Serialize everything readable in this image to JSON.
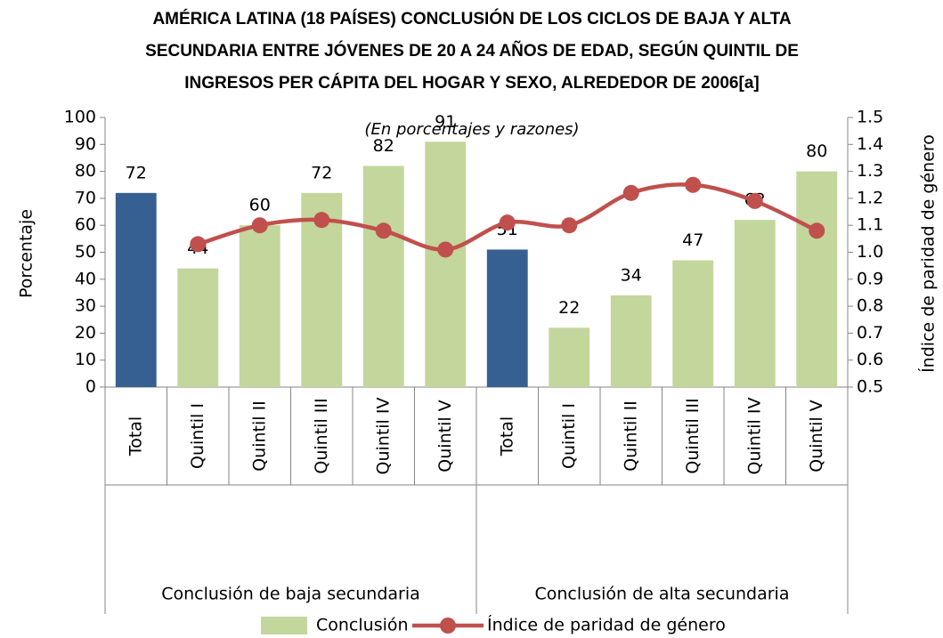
{
  "chart_data": {
    "type": "combo",
    "title": [
      "AMÉRICA LATINA (18 PAÍSES) CONCLUSIÓN DE LOS CICLOS DE BAJA Y ALTA",
      "SECUNDARIA ENTRE JÓVENES DE 20 A 24 AÑOS DE EDAD, SEGÚN QUINTIL DE",
      "INGRESOS PER CÁPITA DEL HOGAR Y SEXO, ALREDEDOR DE 2006[a]"
    ],
    "subtitle": "(En porcentajes y razones)",
    "ylabel": "Porcentaje",
    "y2label": "Índice de paridad de género",
    "groups": [
      {
        "name": "Conclusión de baja secundaria",
        "categories": [
          "Total",
          "Quintil I",
          "Quintil II",
          "Quintil III",
          "Quintil IV",
          "Quintil V"
        ]
      },
      {
        "name": "Conclusión de alta secundaria",
        "categories": [
          "Total",
          "Quintil I",
          "Quintil II",
          "Quintil III",
          "Quintil IV",
          "Quintil V"
        ]
      }
    ],
    "series": [
      {
        "name": "Conclusión",
        "type": "bar",
        "color": "#c3d69b",
        "colors": [
          "#376092",
          "#c3d69b",
          "#c3d69b",
          "#c3d69b",
          "#c3d69b",
          "#c3d69b",
          "#376092",
          "#c3d69b",
          "#c3d69b",
          "#c3d69b",
          "#c3d69b",
          "#c3d69b"
        ],
        "values": [
          72,
          44,
          60,
          72,
          82,
          91,
          51,
          22,
          34,
          47,
          62,
          80
        ]
      },
      {
        "name": "Índice de paridad de género",
        "type": "line",
        "axis": "y2",
        "color": "#c0504d",
        "values": [
          null,
          1.03,
          1.1,
          1.12,
          1.08,
          1.01,
          1.11,
          1.1,
          1.22,
          1.25,
          1.19,
          1.08
        ]
      }
    ],
    "ylim": [
      0,
      100
    ],
    "yticks": [
      0,
      10,
      20,
      30,
      40,
      50,
      60,
      70,
      80,
      90,
      100
    ],
    "y2lim": [
      0.5,
      1.5
    ],
    "y2ticks": [
      0.5,
      0.6,
      0.7,
      0.8,
      0.9,
      {
        "value": 1,
        "label": "1.0"
      },
      1.1,
      1.2,
      1.3,
      1.4,
      1.5
    ],
    "legend": "bottom"
  }
}
